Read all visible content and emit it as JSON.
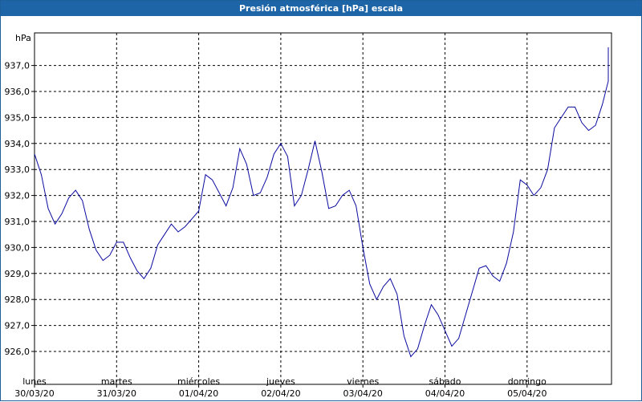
{
  "window": {
    "title": "Presión atmosférica [hPa] escala"
  },
  "colors": {
    "line": "#0a0aa0",
    "titlebar": "#1e65a8",
    "grid": "#000000"
  },
  "chart_data": {
    "type": "line",
    "title": "Presión atmosférica [hPa] escala",
    "ylabel": "hPa",
    "ylim": [
      925.4,
      937.8
    ],
    "grid": true,
    "y_ticks": [
      "926,0",
      "927,0",
      "928,0",
      "929,0",
      "930,0",
      "931,0",
      "932,0",
      "933,0",
      "934,0",
      "935,0",
      "936,0",
      "937,0"
    ],
    "x_ticks": [
      {
        "day": "lunes",
        "date": "30/03/20"
      },
      {
        "day": "martes",
        "date": "31/03/20"
      },
      {
        "day": "miércoles",
        "date": "01/04/20"
      },
      {
        "day": "jueves",
        "date": "02/04/20"
      },
      {
        "day": "viernes",
        "date": "03/04/20"
      },
      {
        "day": "sábado",
        "date": "04/04/20"
      },
      {
        "day": "domingo",
        "date": "05/04/20"
      }
    ],
    "series": [
      {
        "x_hours": [
          0,
          2,
          4,
          6,
          8,
          10,
          12,
          14,
          16,
          18,
          20,
          22,
          24,
          26,
          28,
          30,
          32,
          34,
          36,
          38,
          40,
          42,
          44,
          46,
          48,
          50,
          52,
          54,
          56,
          58,
          60,
          62,
          64,
          66,
          68,
          70,
          72,
          74,
          76,
          78,
          80,
          82,
          84,
          86,
          88,
          90,
          92,
          94,
          96,
          98,
          100,
          102,
          104,
          106,
          108,
          110,
          112,
          114,
          116,
          118,
          120,
          122,
          124,
          126,
          128,
          130,
          132,
          134,
          136,
          138,
          140,
          142,
          144,
          146,
          148,
          150,
          152,
          154,
          156,
          158,
          160,
          162,
          164,
          166,
          168,
          170,
          172,
          174,
          176,
          178
        ],
        "values": [
          933.6,
          932.8,
          931.5,
          930.9,
          931.3,
          931.9,
          932.2,
          931.8,
          930.7,
          929.9,
          929.5,
          929.7,
          930.2,
          930.2,
          929.6,
          929.1,
          928.8,
          929.2,
          930.1,
          930.5,
          930.9,
          930.6,
          930.8,
          931.1,
          931.4,
          932.8,
          932.6,
          932.1,
          931.6,
          932.3,
          933.8,
          933.2,
          932.0,
          932.1,
          932.7,
          933.6,
          934.0,
          933.5,
          931.6,
          932.0,
          933.0,
          934.1,
          932.9,
          931.5,
          931.6,
          932.0,
          932.2,
          931.6,
          930.0,
          928.6,
          928.0,
          928.5,
          928.8,
          928.2,
          926.6,
          925.8,
          926.1,
          927.0,
          927.8,
          927.4,
          926.8,
          926.2,
          926.5,
          927.4,
          928.3,
          929.2,
          929.3,
          928.9,
          928.7,
          929.4,
          930.6,
          932.6,
          932.4,
          932.0,
          932.3,
          933.0,
          934.6,
          935.0,
          935.4,
          935.4,
          934.8,
          934.5,
          934.7,
          935.5,
          936.4,
          937.4,
          937.7,
          937.7,
          937.7,
          937.7
        ]
      }
    ]
  }
}
